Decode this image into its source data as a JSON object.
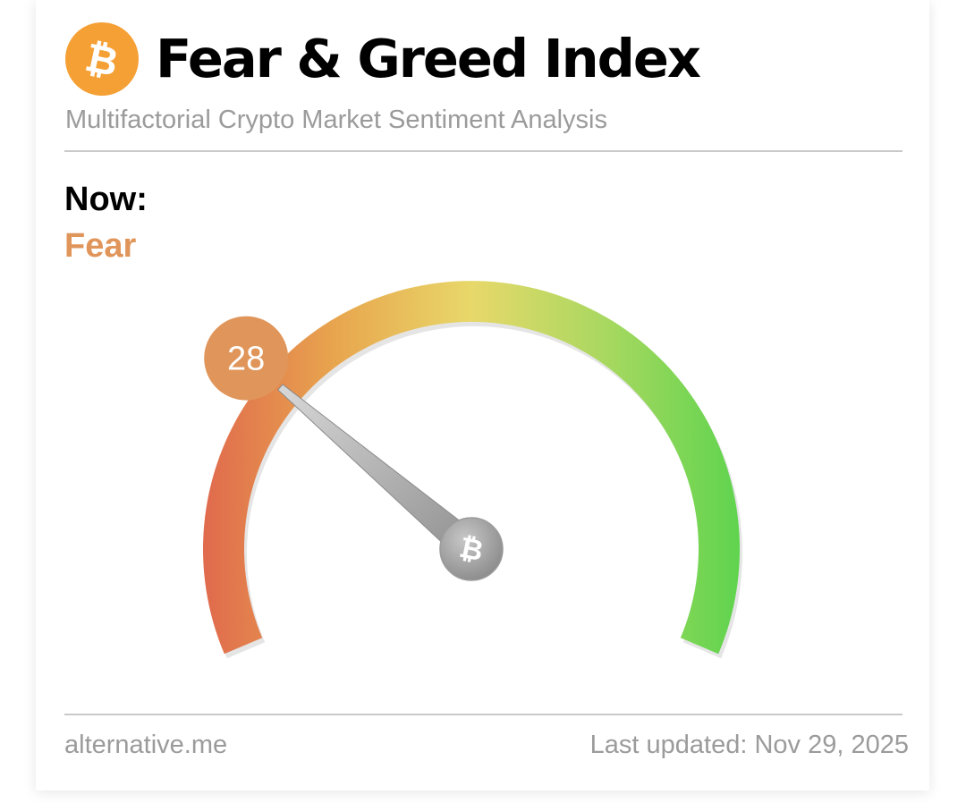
{
  "header": {
    "title": "Fear & Greed Index",
    "subtitle": "Multifactorial Crypto Market Sentiment Analysis",
    "logo_icon": "bitcoin-logo-icon",
    "logo_glyph": "₿",
    "logo_color": "#f5a035"
  },
  "current": {
    "label": "Now:",
    "classification": "Fear",
    "value": "28",
    "value_numeric": 28,
    "scale_min": 0,
    "scale_max": 100,
    "accent_color": "#e0955a"
  },
  "gauge": {
    "needle_hub_icon": "bitcoin-hub-icon",
    "hub_glyph": "₿",
    "gradient_colors": [
      "#e06a4d",
      "#e8a64e",
      "#e8d86a",
      "#a8d860",
      "#5fd44e"
    ]
  },
  "footer": {
    "source": "alternative.me",
    "last_updated": "Last updated: Nov 29, 2025"
  }
}
